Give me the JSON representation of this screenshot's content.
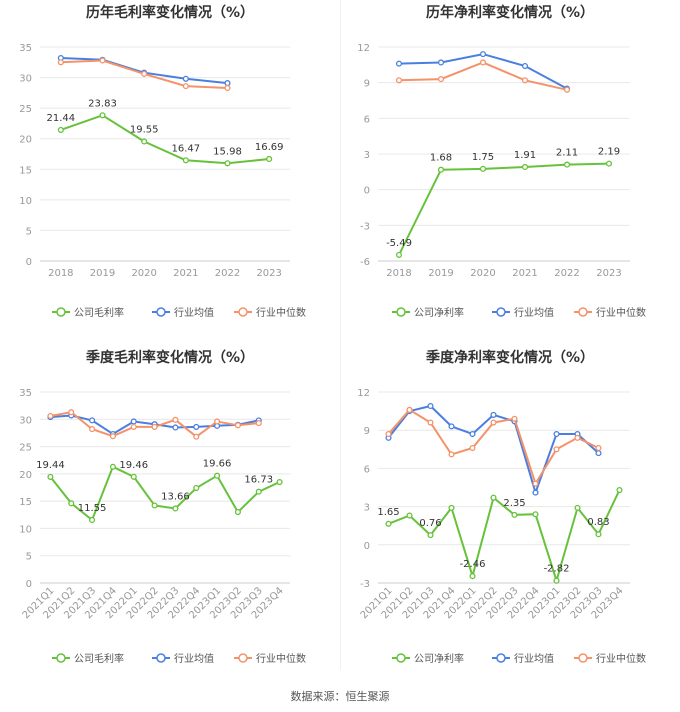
{
  "footer": {
    "source": "数据来源：恒生聚源"
  },
  "legend_labels": [
    "公司毛利率",
    "行业均值",
    "行业中位数",
    "公司净利率"
  ],
  "colors": {
    "company": "#66c23a",
    "avg": "#4a7fe0",
    "median": "#f4926a",
    "grid": "#e8e8e8",
    "tick": "#999999",
    "label": "#333333"
  },
  "chart_data": [
    {
      "type": "line",
      "title": "历年毛利率变化情况（%）",
      "categories": [
        "2018",
        "2019",
        "2020",
        "2021",
        "2022",
        "2023"
      ],
      "ylim": [
        0,
        35
      ],
      "yticks": [
        0,
        5,
        10,
        15,
        20,
        25,
        30,
        35
      ],
      "grid": true,
      "legend_position": "bottom",
      "series": [
        {
          "name": "公司毛利率",
          "role": "company",
          "values": [
            21.44,
            23.83,
            19.55,
            16.47,
            15.98,
            16.69
          ],
          "labels": [
            "21.44",
            "23.83",
            "19.55",
            "16.47",
            "15.98",
            "16.69"
          ]
        },
        {
          "name": "行业均值",
          "role": "avg",
          "values": [
            33.2,
            32.9,
            30.8,
            29.8,
            29.1,
            null
          ]
        },
        {
          "name": "行业中位数",
          "role": "median",
          "values": [
            32.5,
            32.8,
            30.6,
            28.6,
            28.3,
            null
          ]
        }
      ]
    },
    {
      "type": "line",
      "title": "历年净利率变化情况（%）",
      "categories": [
        "2018",
        "2019",
        "2020",
        "2021",
        "2022",
        "2023"
      ],
      "ylim": [
        -6,
        12
      ],
      "yticks": [
        -6,
        -3,
        0,
        3,
        6,
        9,
        12
      ],
      "grid": true,
      "legend_position": "bottom",
      "series": [
        {
          "name": "公司净利率",
          "role": "company",
          "values": [
            -5.49,
            1.68,
            1.75,
            1.91,
            2.11,
            2.19
          ],
          "labels": [
            "-5.49",
            "1.68",
            "1.75",
            "1.91",
            "2.11",
            "2.19"
          ]
        },
        {
          "name": "行业均值",
          "role": "avg",
          "values": [
            10.6,
            10.7,
            11.4,
            10.4,
            8.5,
            null
          ]
        },
        {
          "name": "行业中位数",
          "role": "median",
          "values": [
            9.2,
            9.3,
            10.7,
            9.2,
            8.4,
            null
          ]
        }
      ]
    },
    {
      "type": "line",
      "title": "季度毛利率变化情况（%）",
      "categories": [
        "2021Q1",
        "2021Q2",
        "2021Q3",
        "2021Q4",
        "2022Q1",
        "2022Q2",
        "2022Q3",
        "2022Q4",
        "2023Q1",
        "2023Q2",
        "2023Q3",
        "2023Q4"
      ],
      "ylim": [
        0,
        35
      ],
      "yticks": [
        0,
        5,
        10,
        15,
        20,
        25,
        30,
        35
      ],
      "grid": true,
      "legend_position": "bottom",
      "series": [
        {
          "name": "公司毛利率",
          "role": "company",
          "values": [
            19.44,
            14.6,
            11.55,
            21.3,
            19.46,
            14.2,
            13.66,
            17.4,
            19.66,
            13.0,
            16.73,
            18.5
          ],
          "labels": [
            "19.44",
            "",
            "11.55",
            "",
            "19.46",
            "",
            "13.66",
            "",
            "19.66",
            "",
            "16.73",
            ""
          ]
        },
        {
          "name": "行业均值",
          "role": "avg",
          "values": [
            30.4,
            30.7,
            29.8,
            27.3,
            29.6,
            29.1,
            28.5,
            28.6,
            28.8,
            29.0,
            29.8,
            null
          ]
        },
        {
          "name": "行业中位数",
          "role": "median",
          "values": [
            30.6,
            31.3,
            28.2,
            26.9,
            28.6,
            28.6,
            29.9,
            26.8,
            29.6,
            28.9,
            29.3,
            null
          ]
        }
      ]
    },
    {
      "type": "line",
      "title": "季度净利率变化情况（%）",
      "categories": [
        "2021Q1",
        "2021Q2",
        "2021Q3",
        "2021Q4",
        "2022Q1",
        "2022Q2",
        "2022Q3",
        "2022Q4",
        "2023Q1",
        "2023Q2",
        "2023Q3",
        "2023Q4"
      ],
      "ylim": [
        -3,
        12
      ],
      "yticks": [
        -3,
        0,
        3,
        6,
        9,
        12
      ],
      "grid": true,
      "legend_position": "bottom",
      "series": [
        {
          "name": "公司净利率",
          "role": "company",
          "values": [
            1.65,
            2.3,
            0.76,
            2.9,
            -2.46,
            3.7,
            2.35,
            2.4,
            -2.82,
            2.9,
            0.83,
            4.3
          ],
          "labels": [
            "1.65",
            "",
            "0.76",
            "",
            "-2.46",
            "",
            "2.35",
            "",
            "-2.82",
            "",
            "0.83",
            ""
          ]
        },
        {
          "name": "行业均值",
          "role": "avg",
          "values": [
            8.4,
            10.5,
            10.9,
            9.3,
            8.7,
            10.2,
            9.7,
            4.1,
            8.7,
            8.7,
            7.2,
            null
          ]
        },
        {
          "name": "行业中位数",
          "role": "median",
          "values": [
            8.7,
            10.6,
            9.6,
            7.1,
            7.6,
            9.6,
            9.9,
            4.8,
            7.5,
            8.4,
            7.6,
            null
          ]
        }
      ]
    }
  ]
}
